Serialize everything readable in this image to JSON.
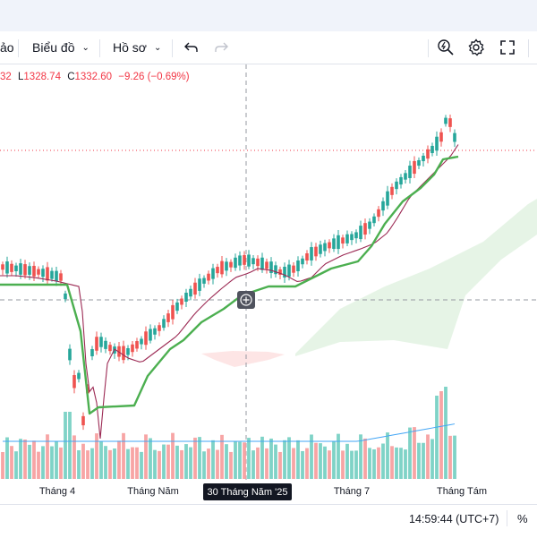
{
  "toolbar": {
    "left_partial": "ảo",
    "chart_label": "Biểu đồ",
    "profile_label": "Hồ sơ"
  },
  "ohlc": {
    "h_partial": "32",
    "l_key": "L",
    "l_val": "1328.74",
    "c_key": "C",
    "c_val": "1332.60",
    "change": "−9.26 (−0.69%)"
  },
  "xaxis": {
    "labels": [
      "Tháng 4",
      "Tháng Năm",
      "Tháng 7",
      "Tháng Tám"
    ],
    "crosshair_label": "30 Tháng Năm '25"
  },
  "status": {
    "clock": "14:59:44 (UTC+7)",
    "percent": "%"
  },
  "colors": {
    "up": "#26a69a",
    "down": "#ef5350",
    "vol_up": "#7fd3c7",
    "vol_down": "#f7a5a5",
    "trail_stop": "#4caf50",
    "ma": "#9c2a54",
    "volume_ma": "#42a5f5",
    "cloud": "#a5d6a7",
    "accent": "#f23645"
  },
  "icons": [
    "undo-icon",
    "redo-icon",
    "quick-search-icon",
    "settings-gear-icon",
    "fullscreen-icon",
    "crosshair-plus-icon"
  ]
}
